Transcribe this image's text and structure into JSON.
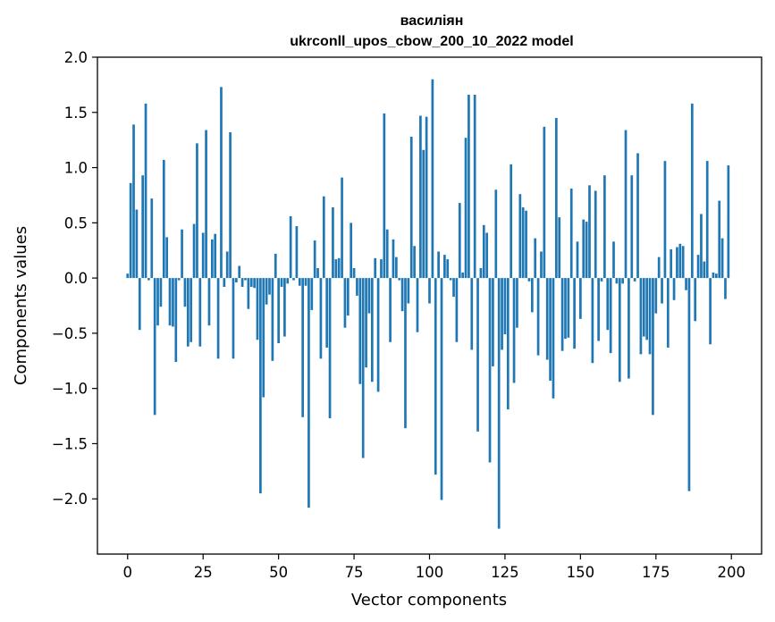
{
  "chart_data": {
    "type": "bar",
    "title_line1": "василіян",
    "title_line2": "ukrconll_upos_cbow_200_10_2022 model",
    "xlabel": "Vector components",
    "ylabel": "Components values",
    "xlim": [
      -10,
      210
    ],
    "ylim": [
      -2.5,
      2.0
    ],
    "xticks": [
      0,
      25,
      50,
      75,
      100,
      125,
      150,
      175,
      200
    ],
    "xtick_labels": [
      "0",
      "25",
      "50",
      "75",
      "100",
      "125",
      "150",
      "175",
      "200"
    ],
    "yticks": [
      -2.0,
      -1.5,
      -1.0,
      -0.5,
      0.0,
      0.5,
      1.0,
      1.5,
      2.0
    ],
    "ytick_labels": [
      "−2.0",
      "−1.5",
      "−1.0",
      "−0.5",
      "0.0",
      "0.5",
      "1.0",
      "1.5",
      "2.0"
    ],
    "bar_color": "#1f77b4",
    "x": [
      0,
      1,
      2,
      3,
      4,
      5,
      6,
      7,
      8,
      9,
      10,
      11,
      12,
      13,
      14,
      15,
      16,
      17,
      18,
      19,
      20,
      21,
      22,
      23,
      24,
      25,
      26,
      27,
      28,
      29,
      30,
      31,
      32,
      33,
      34,
      35,
      36,
      37,
      38,
      39,
      40,
      41,
      42,
      43,
      44,
      45,
      46,
      47,
      48,
      49,
      50,
      51,
      52,
      53,
      54,
      55,
      56,
      57,
      58,
      59,
      60,
      61,
      62,
      63,
      64,
      65,
      66,
      67,
      68,
      69,
      70,
      71,
      72,
      73,
      74,
      75,
      76,
      77,
      78,
      79,
      80,
      81,
      82,
      83,
      84,
      85,
      86,
      87,
      88,
      89,
      90,
      91,
      92,
      93,
      94,
      95,
      96,
      97,
      98,
      99,
      100,
      101,
      102,
      103,
      104,
      105,
      106,
      107,
      108,
      109,
      110,
      111,
      112,
      113,
      114,
      115,
      116,
      117,
      118,
      119,
      120,
      121,
      122,
      123,
      124,
      125,
      126,
      127,
      128,
      129,
      130,
      131,
      132,
      133,
      134,
      135,
      136,
      137,
      138,
      139,
      140,
      141,
      142,
      143,
      144,
      145,
      146,
      147,
      148,
      149,
      150,
      151,
      152,
      153,
      154,
      155,
      156,
      157,
      158,
      159,
      160,
      161,
      162,
      163,
      164,
      165,
      166,
      167,
      168,
      169,
      170,
      171,
      172,
      173,
      174,
      175,
      176,
      177,
      178,
      179,
      180,
      181,
      182,
      183,
      184,
      185,
      186,
      187,
      188,
      189,
      190,
      191,
      192,
      193,
      194,
      195,
      196,
      197,
      198,
      199
    ],
    "values": [
      0.04,
      0.86,
      1.39,
      0.62,
      -0.47,
      0.93,
      1.58,
      -0.02,
      0.72,
      -1.24,
      -0.43,
      -0.26,
      1.07,
      0.37,
      -0.43,
      -0.44,
      -0.76,
      -0.02,
      0.44,
      -0.26,
      -0.62,
      -0.58,
      0.49,
      1.22,
      -0.62,
      0.41,
      1.34,
      -0.43,
      0.35,
      0.4,
      -0.73,
      1.73,
      -0.08,
      0.24,
      1.32,
      -0.73,
      -0.04,
      0.11,
      -0.08,
      -0.02,
      -0.28,
      -0.08,
      -0.09,
      -0.56,
      -1.95,
      -1.08,
      -0.24,
      -0.15,
      -0.75,
      0.22,
      -0.59,
      -0.08,
      -0.53,
      -0.05,
      0.56,
      -0.02,
      0.47,
      -0.07,
      -1.26,
      -0.07,
      -2.08,
      -0.29,
      0.34,
      0.09,
      -0.73,
      0.74,
      -0.63,
      -1.27,
      0.64,
      0.17,
      0.18,
      0.91,
      -0.45,
      -0.34,
      0.5,
      0.09,
      -0.16,
      -0.96,
      -1.63,
      -0.81,
      -0.32,
      -0.94,
      0.18,
      -1.03,
      0.17,
      1.49,
      0.44,
      -0.58,
      0.35,
      0.19,
      -0.02,
      -0.3,
      -1.36,
      -0.23,
      1.28,
      0.29,
      -0.49,
      1.47,
      1.16,
      1.46,
      -0.23,
      1.8,
      -1.78,
      0.24,
      -2.01,
      0.21,
      0.17,
      -0.02,
      -0.17,
      -0.58,
      0.68,
      0.05,
      1.27,
      1.66,
      -0.65,
      1.66,
      -1.39,
      0.09,
      0.48,
      0.41,
      -1.67,
      -0.8,
      0.8,
      -2.27,
      -0.65,
      -0.51,
      -1.19,
      1.03,
      -0.95,
      -0.45,
      0.76,
      0.64,
      0.61,
      -0.03,
      -0.31,
      0.36,
      -0.7,
      0.24,
      1.37,
      -0.74,
      -0.93,
      -1.09,
      1.45,
      0.55,
      -0.66,
      -0.55,
      -0.54,
      0.81,
      -0.64,
      0.33,
      -0.37,
      0.53,
      0.51,
      0.84,
      -0.77,
      0.79,
      -0.57,
      -0.03,
      0.93,
      -0.47,
      -0.68,
      0.33,
      -0.05,
      -0.94,
      -0.05,
      1.34,
      -0.91,
      0.93,
      -0.03,
      1.13,
      -0.69,
      -0.53,
      -0.56,
      -0.69,
      -1.24,
      -0.32,
      0.19,
      -0.23,
      1.06,
      -0.63,
      0.26,
      -0.2,
      0.28,
      0.31,
      0.29,
      -0.11,
      -1.93,
      1.58,
      -0.39,
      0.21,
      0.58,
      0.15,
      1.06,
      -0.6,
      0.05,
      0.04,
      0.7,
      0.36,
      -0.19,
      1.02
    ]
  }
}
